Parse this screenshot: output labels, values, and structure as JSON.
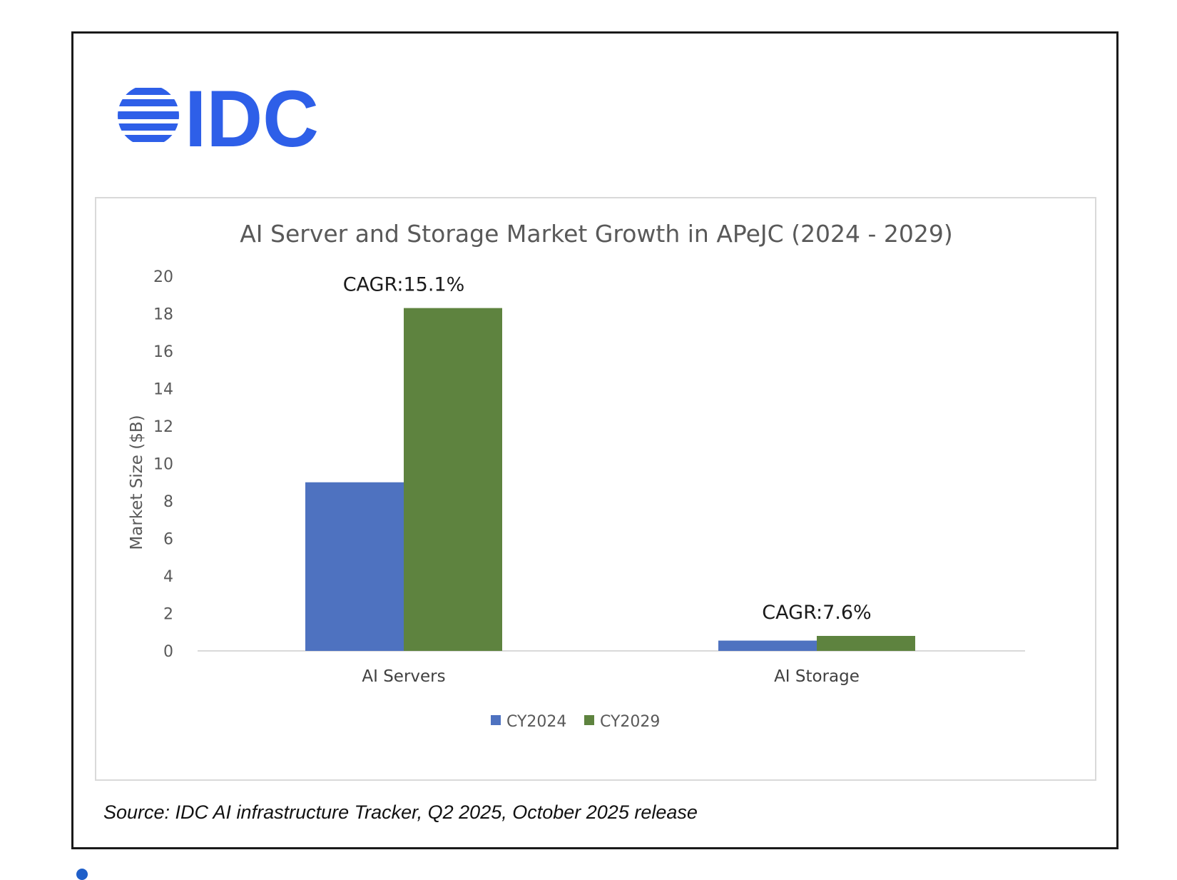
{
  "logo": {
    "text": "IDC",
    "color": "#2e5fe8"
  },
  "source": "Source: IDC AI infrastructure Tracker, Q2 2025, October 2025 release",
  "chart_data": {
    "type": "bar",
    "title": "AI Server and Storage Market Growth in APeJC (2024 - 2029)",
    "categories": [
      "AI Servers",
      "AI Storage"
    ],
    "series": [
      {
        "name": "CY2024",
        "color": "#4e72c0",
        "values": [
          9.0,
          0.55
        ]
      },
      {
        "name": "CY2029",
        "color": "#5e833f",
        "values": [
          18.3,
          0.8
        ]
      }
    ],
    "annotations": [
      "CAGR:15.1%",
      "CAGR:7.6%"
    ],
    "xlabel": "",
    "ylabel": "Market Size ($B)",
    "ylim": [
      0,
      20
    ],
    "yticks": [
      0,
      2,
      4,
      6,
      8,
      10,
      12,
      14,
      16,
      18,
      20
    ],
    "grid": false,
    "legend": "bottom"
  }
}
